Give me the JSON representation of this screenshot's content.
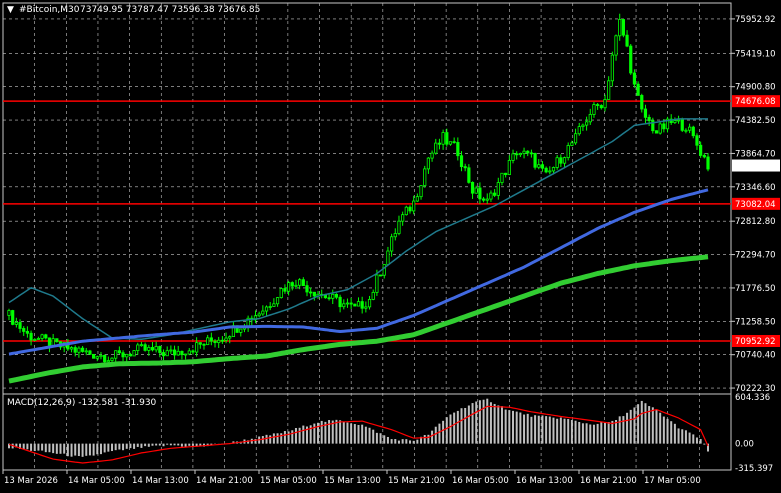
{
  "header": {
    "symbol_timeframe": "#Bitcoin,M30",
    "ohlc": "73749.95 73787.47 73596.38 73676.85"
  },
  "colors": {
    "background": "#000000",
    "grid": "#c8c8c8",
    "bull_candle": "#00ff00",
    "ma_fast": "#1f7a8c",
    "ma_mid": "#4169e1",
    "ma_slow": "#32cd32",
    "hline": "#ff0000",
    "macd_hist": "#c0c0c0",
    "macd_signal": "#ff0000",
    "price_tag_bg": "#ffffff",
    "level_tag_bg": "#ff0000"
  },
  "chart_data": [
    {
      "type": "candlestick",
      "price_axis": [
        "75952.92",
        "75419.10",
        "74900.80",
        "74382.50",
        "73864.70",
        "73346.60",
        "72812.80",
        "72294.70",
        "71776.50",
        "71258.50",
        "70740.40",
        "70222.30"
      ],
      "ylim": [
        70130,
        76200
      ],
      "time_axis": [
        "13 Mar 2026",
        "14 Mar 05:00",
        "14 Mar 13:00",
        "14 Mar 21:00",
        "15 Mar 05:00",
        "15 Mar 13:00",
        "15 Mar 21:00",
        "16 Mar 05:00",
        "16 Mar 13:00",
        "16 Mar 21:00",
        "17 Mar 05:00"
      ],
      "current_price": "73676.85",
      "horizontal_levels": [
        "74676.08",
        "73082.04",
        "70952.92"
      ],
      "close_path": [
        [
          0,
          71350
        ],
        [
          5,
          71050
        ],
        [
          12,
          70900
        ],
        [
          20,
          70780
        ],
        [
          28,
          70700
        ],
        [
          36,
          70820
        ],
        [
          44,
          70760
        ],
        [
          50,
          70850
        ],
        [
          58,
          71020
        ],
        [
          64,
          71250
        ],
        [
          70,
          71480
        ],
        [
          74,
          71750
        ],
        [
          78,
          71900
        ],
        [
          82,
          71750
        ],
        [
          88,
          71600
        ],
        [
          94,
          71450
        ],
        [
          98,
          71600
        ],
        [
          102,
          72200
        ],
        [
          106,
          72800
        ],
        [
          110,
          73100
        ],
        [
          114,
          73800
        ],
        [
          118,
          74100
        ],
        [
          122,
          73900
        ],
        [
          126,
          73300
        ],
        [
          130,
          73100
        ],
        [
          134,
          73500
        ],
        [
          138,
          73900
        ],
        [
          142,
          73800
        ],
        [
          146,
          73500
        ],
        [
          150,
          73800
        ],
        [
          154,
          74100
        ],
        [
          158,
          74500
        ],
        [
          162,
          74700
        ],
        [
          164,
          75400
        ],
        [
          166,
          75900
        ],
        [
          168,
          75500
        ],
        [
          170,
          74900
        ],
        [
          172,
          74500
        ],
        [
          176,
          74200
        ],
        [
          180,
          74350
        ],
        [
          184,
          74300
        ],
        [
          188,
          73900
        ],
        [
          190,
          73680
        ]
      ],
      "ma_fast": [
        [
          0,
          71550
        ],
        [
          6,
          71780
        ],
        [
          12,
          71650
        ],
        [
          20,
          71300
        ],
        [
          28,
          71000
        ],
        [
          36,
          70980
        ],
        [
          44,
          71050
        ],
        [
          52,
          71150
        ],
        [
          60,
          71250
        ],
        [
          68,
          71300
        ],
        [
          76,
          71450
        ],
        [
          84,
          71650
        ],
        [
          92,
          71750
        ],
        [
          100,
          72000
        ],
        [
          108,
          72350
        ],
        [
          116,
          72650
        ],
        [
          124,
          72850
        ],
        [
          132,
          73050
        ],
        [
          140,
          73300
        ],
        [
          148,
          73550
        ],
        [
          156,
          73800
        ],
        [
          164,
          74050
        ],
        [
          170,
          74300
        ],
        [
          176,
          74350
        ],
        [
          182,
          74400
        ],
        [
          190,
          74400
        ]
      ],
      "ma_mid": [
        [
          0,
          70750
        ],
        [
          10,
          70850
        ],
        [
          20,
          70950
        ],
        [
          30,
          71000
        ],
        [
          40,
          71050
        ],
        [
          50,
          71090
        ],
        [
          60,
          71170
        ],
        [
          70,
          71180
        ],
        [
          80,
          71170
        ],
        [
          90,
          71100
        ],
        [
          100,
          71150
        ],
        [
          110,
          71350
        ],
        [
          120,
          71600
        ],
        [
          130,
          71850
        ],
        [
          140,
          72100
        ],
        [
          150,
          72400
        ],
        [
          160,
          72700
        ],
        [
          170,
          72950
        ],
        [
          180,
          73150
        ],
        [
          190,
          73300
        ]
      ],
      "ma_slow": [
        [
          0,
          70330
        ],
        [
          10,
          70450
        ],
        [
          20,
          70550
        ],
        [
          30,
          70600
        ],
        [
          40,
          70610
        ],
        [
          50,
          70630
        ],
        [
          60,
          70680
        ],
        [
          70,
          70720
        ],
        [
          80,
          70820
        ],
        [
          90,
          70900
        ],
        [
          100,
          70950
        ],
        [
          110,
          71050
        ],
        [
          120,
          71250
        ],
        [
          130,
          71450
        ],
        [
          140,
          71650
        ],
        [
          150,
          71850
        ],
        [
          160,
          72000
        ],
        [
          170,
          72120
        ],
        [
          180,
          72200
        ],
        [
          190,
          72260
        ]
      ],
      "title": "",
      "xlabel": "",
      "ylabel": "",
      "grid": true
    },
    {
      "type": "bar",
      "name": "MACD(12,26,9) -132.581 -31.930",
      "value_axis": [
        "604.336",
        "0.00",
        "-315.397"
      ],
      "ylim": [
        -340,
        640
      ],
      "histogram_path": [
        [
          0,
          -50
        ],
        [
          12,
          -120
        ],
        [
          20,
          -180
        ],
        [
          28,
          -100
        ],
        [
          36,
          -50
        ],
        [
          44,
          -20
        ],
        [
          52,
          -40
        ],
        [
          60,
          10
        ],
        [
          68,
          80
        ],
        [
          76,
          160
        ],
        [
          84,
          280
        ],
        [
          90,
          300
        ],
        [
          96,
          240
        ],
        [
          104,
          60
        ],
        [
          110,
          40
        ],
        [
          114,
          120
        ],
        [
          120,
          380
        ],
        [
          126,
          520
        ],
        [
          130,
          570
        ],
        [
          136,
          430
        ],
        [
          142,
          360
        ],
        [
          150,
          330
        ],
        [
          158,
          250
        ],
        [
          164,
          280
        ],
        [
          170,
          460
        ],
        [
          172,
          540
        ],
        [
          176,
          430
        ],
        [
          182,
          210
        ],
        [
          188,
          60
        ],
        [
          190,
          -110
        ]
      ],
      "signal_path": [
        [
          0,
          -10
        ],
        [
          12,
          -200
        ],
        [
          20,
          -250
        ],
        [
          28,
          -210
        ],
        [
          36,
          -120
        ],
        [
          44,
          -60
        ],
        [
          52,
          -30
        ],
        [
          60,
          0
        ],
        [
          68,
          50
        ],
        [
          76,
          120
        ],
        [
          84,
          220
        ],
        [
          90,
          280
        ],
        [
          96,
          290
        ],
        [
          104,
          180
        ],
        [
          110,
          70
        ],
        [
          114,
          80
        ],
        [
          120,
          220
        ],
        [
          126,
          380
        ],
        [
          130,
          480
        ],
        [
          136,
          470
        ],
        [
          142,
          410
        ],
        [
          150,
          350
        ],
        [
          158,
          300
        ],
        [
          164,
          260
        ],
        [
          170,
          320
        ],
        [
          172,
          390
        ],
        [
          176,
          440
        ],
        [
          182,
          330
        ],
        [
          188,
          180
        ],
        [
          190,
          -30
        ]
      ]
    }
  ]
}
